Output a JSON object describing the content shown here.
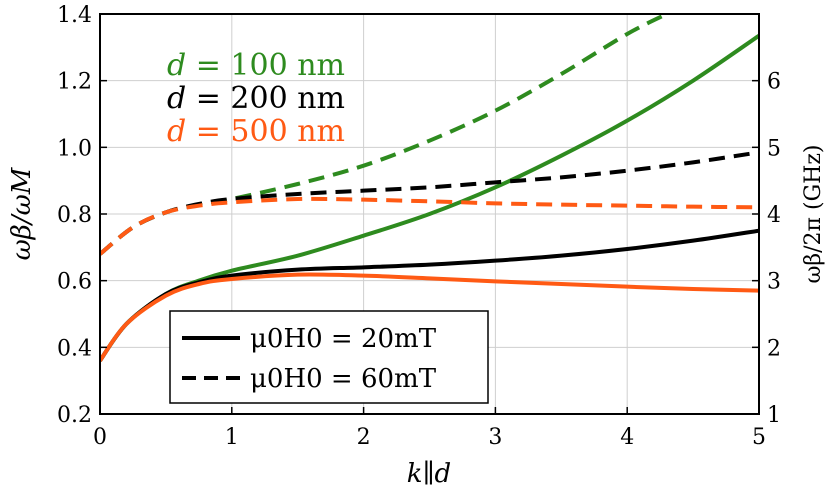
{
  "chart_data": {
    "type": "line",
    "xlabel": "k∥d",
    "ylabel_left": "ωβ/ωM",
    "ylabel_right": "ωβ/2π (GHz)",
    "xlim": [
      0,
      5
    ],
    "ylim": [
      0.2,
      1.4
    ],
    "ylim_right": [
      1,
      7
    ],
    "xticks": [
      "0",
      "1",
      "2",
      "3",
      "4",
      "5"
    ],
    "yticks_left": [
      "0.2",
      "0.4",
      "0.6",
      "0.8",
      "1.0",
      "1.2",
      "1.4"
    ],
    "yticks_right": [
      "1",
      "2",
      "3",
      "4",
      "5",
      "6"
    ],
    "grid": true,
    "annotations": [
      {
        "prefix": "d",
        "text": " = 100 nm",
        "color": "#2e8b1f"
      },
      {
        "prefix": "d",
        "text": " = 200 nm",
        "color": "#000000"
      },
      {
        "prefix": "d",
        "text": " = 500 nm",
        "color": "#ff5a14"
      }
    ],
    "legend": {
      "position": "bottom-left",
      "entries": [
        {
          "label": "μ0H0 = 20mT",
          "style": "solid"
        },
        {
          "label": "μ0H0 = 60mT",
          "style": "dashed"
        }
      ]
    },
    "series": [
      {
        "color": "#2e8b1f",
        "style": "dashed",
        "x": [
          0,
          0.25,
          0.5,
          0.75,
          1,
          1.5,
          2,
          2.5,
          3,
          3.5,
          4,
          4.3
        ],
        "y": [
          0.68,
          0.76,
          0.805,
          0.828,
          0.845,
          0.89,
          0.945,
          1.02,
          1.11,
          1.22,
          1.34,
          1.4
        ]
      },
      {
        "color": "#2e8b1f",
        "style": "solid",
        "x": [
          0,
          0.2,
          0.5,
          0.75,
          1,
          1.5,
          2,
          2.5,
          3,
          3.5,
          4,
          4.5,
          5
        ],
        "y": [
          0.36,
          0.47,
          0.56,
          0.6,
          0.63,
          0.675,
          0.735,
          0.8,
          0.88,
          0.975,
          1.08,
          1.2,
          1.335
        ]
      },
      {
        "color": "#000000",
        "style": "dashed",
        "x": [
          0,
          0.25,
          0.5,
          0.75,
          1,
          1.5,
          2,
          2.5,
          3,
          3.5,
          4,
          4.5,
          5
        ],
        "y": [
          0.68,
          0.76,
          0.805,
          0.83,
          0.845,
          0.86,
          0.87,
          0.88,
          0.895,
          0.91,
          0.93,
          0.955,
          0.985
        ]
      },
      {
        "color": "#000000",
        "style": "solid",
        "x": [
          0,
          0.2,
          0.5,
          0.75,
          1,
          1.5,
          2,
          2.5,
          3,
          3.5,
          4,
          4.5,
          5
        ],
        "y": [
          0.36,
          0.47,
          0.56,
          0.595,
          0.615,
          0.633,
          0.64,
          0.648,
          0.66,
          0.675,
          0.695,
          0.72,
          0.75
        ]
      },
      {
        "color": "#ff5a14",
        "style": "dashed",
        "x": [
          0,
          0.25,
          0.5,
          0.75,
          1,
          1.5,
          2,
          2.5,
          3,
          3.5,
          4,
          4.5,
          5
        ],
        "y": [
          0.68,
          0.76,
          0.805,
          0.825,
          0.835,
          0.845,
          0.843,
          0.838,
          0.832,
          0.828,
          0.825,
          0.822,
          0.82
        ]
      },
      {
        "color": "#ff5a14",
        "style": "solid",
        "x": [
          0,
          0.2,
          0.5,
          0.75,
          1,
          1.5,
          2,
          2.5,
          3,
          3.5,
          4,
          4.5,
          5
        ],
        "y": [
          0.36,
          0.47,
          0.555,
          0.59,
          0.605,
          0.618,
          0.615,
          0.607,
          0.598,
          0.59,
          0.582,
          0.575,
          0.57
        ]
      }
    ]
  }
}
